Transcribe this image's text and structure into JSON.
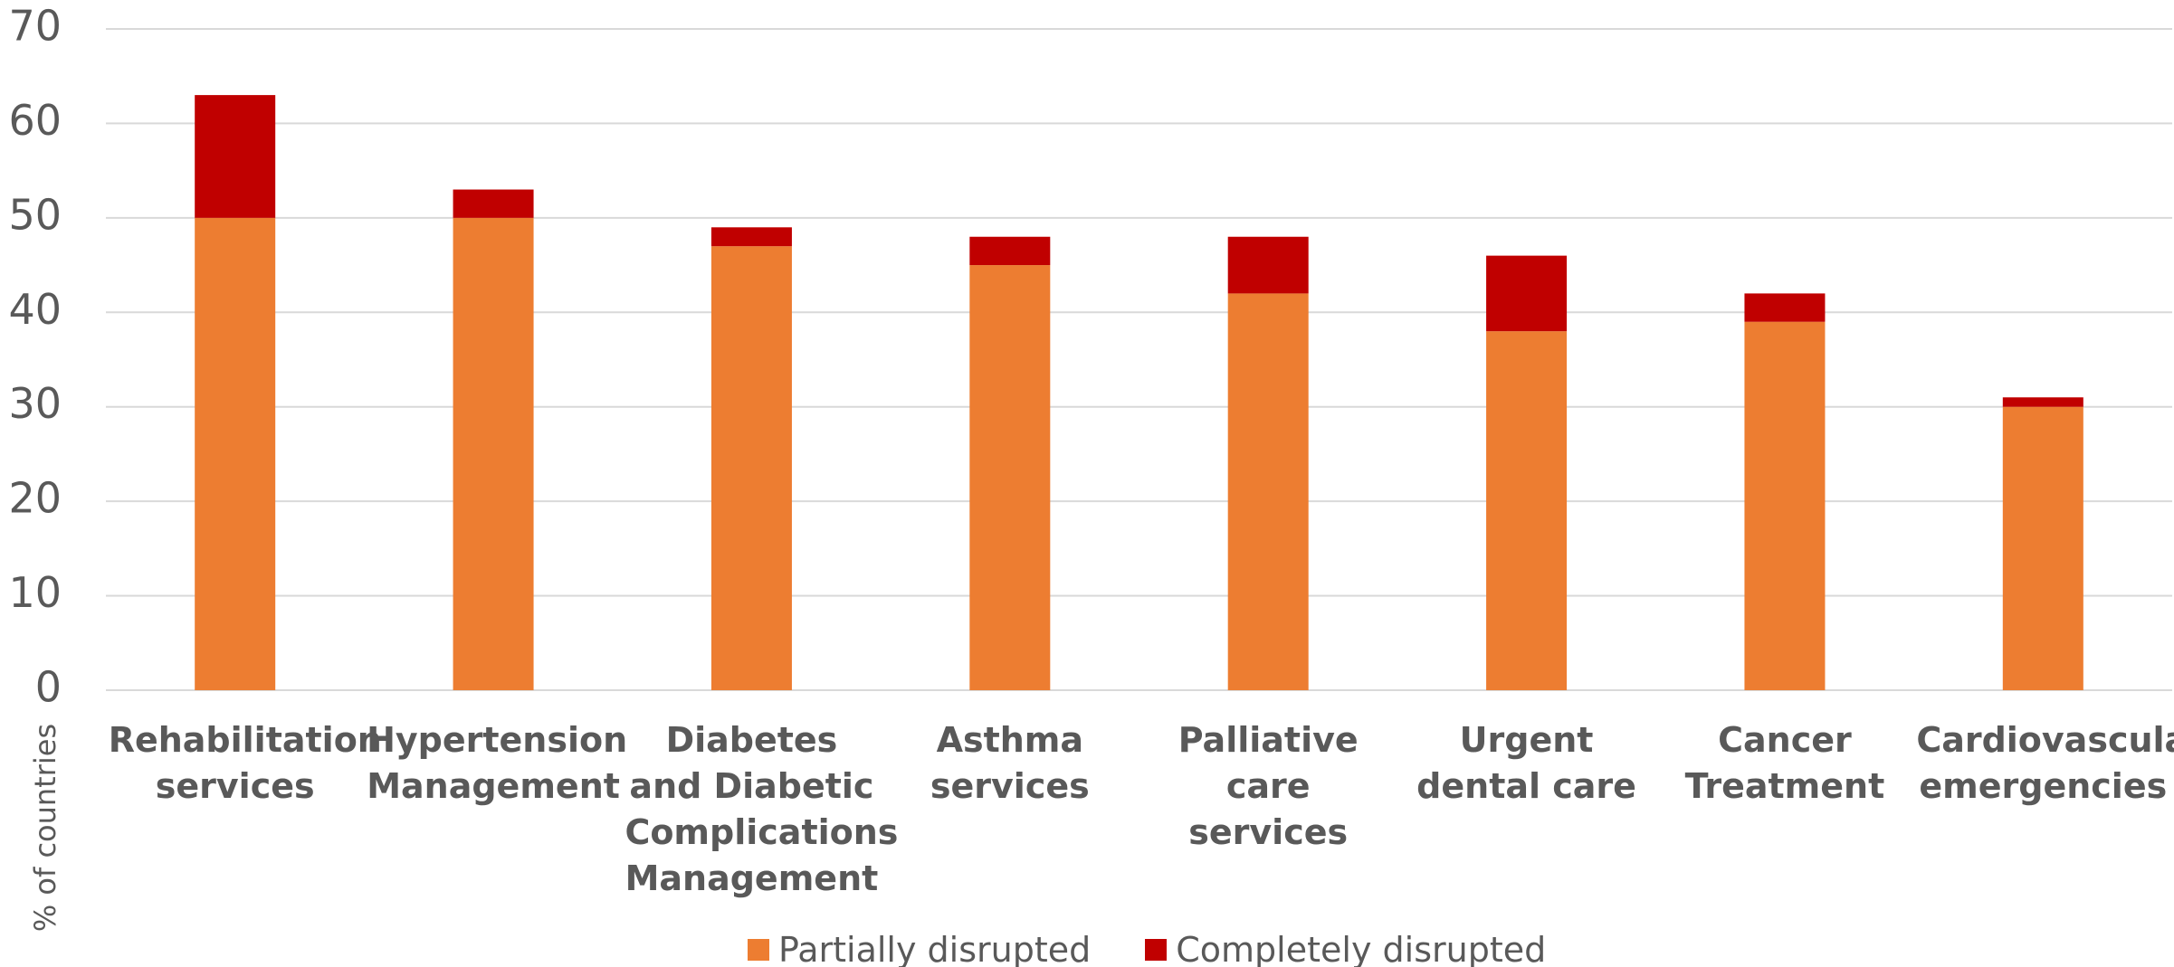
{
  "chart_data": {
    "type": "stacked_bar",
    "y_label": "% of countries",
    "categories": [
      "Rehabilitation services",
      "Hypertension Management",
      "Diabetes and Diabetic Complications Management",
      "Asthma services",
      "Palliative care services",
      "Urgent dental care",
      "Cancer Treatment",
      "Cardiovascular emergencies"
    ],
    "series": [
      {
        "name": "Partially disrupted",
        "color": "#ed7d31",
        "values": [
          50,
          50,
          47,
          45,
          42,
          38,
          39,
          30
        ]
      },
      {
        "name": "Completely disrupted",
        "color": "#c00000",
        "values": [
          13,
          3,
          2,
          3,
          6,
          8,
          3,
          1
        ]
      }
    ],
    "ylim": [
      0,
      70
    ],
    "yticks": [
      0,
      10,
      20,
      30,
      40,
      50,
      60,
      70
    ],
    "grid": true,
    "legend": "bottom"
  }
}
